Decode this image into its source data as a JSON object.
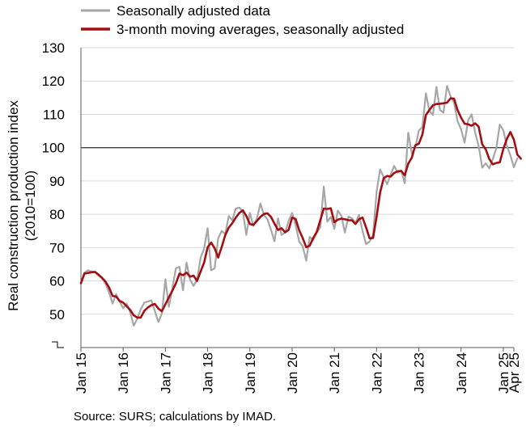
{
  "chart_data": {
    "type": "line",
    "ylabel": "Real construction production index (2010=100)",
    "ylim": [
      40,
      130
    ],
    "yticks": [
      50,
      60,
      70,
      80,
      90,
      100,
      110,
      120,
      130
    ],
    "reference_line": 100,
    "grid": "horizontal",
    "legend_position": "top-left",
    "x_tick_labels": [
      "Jan 15",
      "Jan 16",
      "Jan 17",
      "Jan 18",
      "Jan 19",
      "Jan 20",
      "Jan 21",
      "Jan 22",
      "Jan 23",
      "Jan 24",
      "Jan 25",
      "Apr 25"
    ],
    "x_start": "2015-01",
    "x_end": "2025-04",
    "series": [
      {
        "name": "Seasonally adjusted data",
        "color": "#a6a6a6",
        "values": [
          59.2,
          62.5,
          63.2,
          62.8,
          62.6,
          61.6,
          60.8,
          59.2,
          56.5,
          53.2,
          56.0,
          53.8,
          51.8,
          53.2,
          50.6,
          46.6,
          48.6,
          51.5,
          53.5,
          53.8,
          54.2,
          51.0,
          47.7,
          50.2,
          60.5,
          52.2,
          58.0,
          63.8,
          64.2,
          57.2,
          65.5,
          60.4,
          58.5,
          60.3,
          67.0,
          69.7,
          75.8,
          63.2,
          63.8,
          72.8,
          75.0,
          74.0,
          79.5,
          78.2,
          81.7,
          82.0,
          80.8,
          73.8,
          80.4,
          76.5,
          78.8,
          83.2,
          79.8,
          78.5,
          75.3,
          71.9,
          78.8,
          73.8,
          74.5,
          78.0,
          80.4,
          76.8,
          71.8,
          70.4,
          66.1,
          73.2,
          72.3,
          74.4,
          76.1,
          88.3,
          77.8,
          79.2,
          75.6,
          81.1,
          79.5,
          74.5,
          79.3,
          78.8,
          77.4,
          79.8,
          75.0,
          71.1,
          71.8,
          73.7,
          86.8,
          93.5,
          91.2,
          89.0,
          92.0,
          94.5,
          92.5,
          93.2,
          89.3,
          104.5,
          98.2,
          100.0,
          105.1,
          106.2,
          116.3,
          111.0,
          109.8,
          118.2,
          111.3,
          110.5,
          118.5,
          115.5,
          113.5,
          108.0,
          105.5,
          101.5,
          108.2,
          110.0,
          104.5,
          100.5,
          94.0,
          95.3,
          93.8,
          96.5,
          99.8,
          106.9,
          105.2,
          100.6,
          97.7,
          94.1,
          96.8
        ]
      },
      {
        "name": "3-month moving averages, seasonally adjusted",
        "color": "#a40e12",
        "values": [
          59.3,
          62.2,
          62.4,
          62.6,
          62.7,
          61.9,
          60.9,
          59.8,
          58.0,
          55.5,
          55.3,
          54.0,
          53.5,
          52.4,
          51.3,
          49.7,
          49.0,
          49.0,
          51.0,
          52.0,
          52.7,
          53.1,
          51.7,
          50.9,
          53.0,
          55.1,
          57.1,
          59.3,
          62.2,
          61.7,
          62.5,
          61.3,
          61.6,
          60.0,
          62.8,
          65.5,
          70.1,
          71.5,
          69.8,
          67.0,
          70.2,
          73.7,
          76.0,
          77.3,
          79.0,
          80.4,
          81.2,
          79.5,
          77.1,
          76.8,
          78.0,
          79.2,
          80.1,
          80.3,
          79.2,
          77.2,
          75.3,
          75.8,
          74.6,
          75.3,
          79.0,
          78.6,
          75.2,
          72.9,
          70.1,
          70.6,
          72.9,
          74.7,
          78.2,
          81.7,
          81.6,
          81.8,
          77.6,
          78.4,
          78.7,
          78.5,
          78.2,
          78.2,
          77.1,
          78.5,
          79.0,
          76.1,
          72.8,
          72.9,
          79.3,
          86.5,
          90.8,
          91.5,
          91.3,
          92.4,
          92.9,
          93.0,
          91.7,
          95.2,
          97.0,
          100.7,
          101.2,
          103.9,
          109.8,
          111.3,
          112.7,
          113.1,
          113.2,
          113.3,
          113.5,
          114.8,
          114.7,
          111.3,
          109.0,
          107.2,
          107.0,
          106.6,
          107.3,
          106.3,
          101.0,
          99.5,
          96.6,
          95.0,
          95.4,
          95.6,
          99.6,
          102.6,
          104.7,
          102.4,
          97.9,
          96.7
        ]
      }
    ]
  },
  "source": "Source: SURS; calculations by IMAD."
}
